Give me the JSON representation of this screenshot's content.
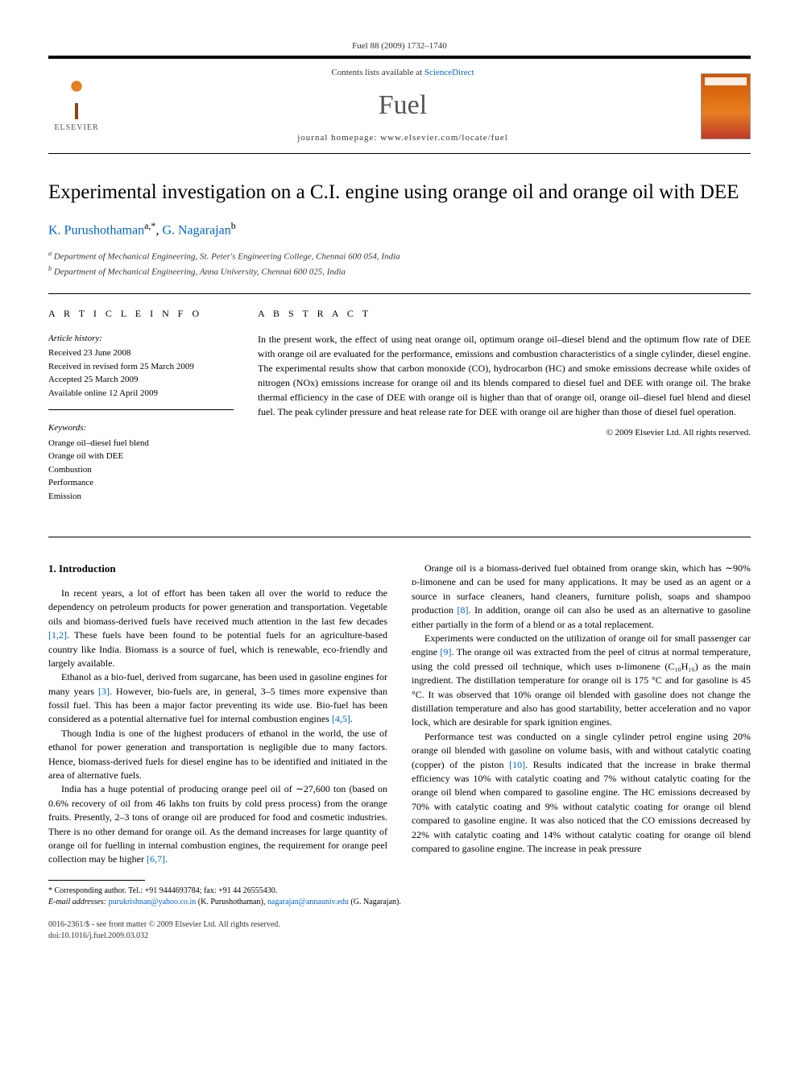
{
  "citation": "Fuel 88 (2009) 1732–1740",
  "header": {
    "contents_prefix": "Contents lists available at ",
    "contents_link": "ScienceDirect",
    "journal": "Fuel",
    "homepage_label": "journal homepage: ",
    "homepage_url": "www.elsevier.com/locate/fuel",
    "publisher": "ELSEVIER"
  },
  "title": "Experimental investigation on a C.I. engine using orange oil and orange oil with DEE",
  "authors": {
    "a1_name": "K. Purushothaman",
    "a1_sup": "a,*",
    "a2_name": "G. Nagarajan",
    "a2_sup": "b"
  },
  "affiliations": {
    "a": "Department of Mechanical Engineering, St. Peter's Engineering College, Chennai 600 054, India",
    "b": "Department of Mechanical Engineering, Anna University, Chennai 600 025, India"
  },
  "article_info": {
    "heading": "A R T I C L E   I N F O",
    "history_label": "Article history:",
    "received": "Received 23 June 2008",
    "revised": "Received in revised form 25 March 2009",
    "accepted": "Accepted 25 March 2009",
    "online": "Available online 12 April 2009",
    "keywords_label": "Keywords:",
    "kw1": "Orange oil–diesel fuel blend",
    "kw2": "Orange oil with DEE",
    "kw3": "Combustion",
    "kw4": "Performance",
    "kw5": "Emission"
  },
  "abstract": {
    "heading": "A B S T R A C T",
    "text": "In the present work, the effect of using neat orange oil, optimum orange oil–diesel blend and the optimum flow rate of DEE with orange oil are evaluated for the performance, emissions and combustion characteristics of a single cylinder, diesel engine. The experimental results show that carbon monoxide (CO), hydrocarbon (HC) and smoke emissions decrease while oxides of nitrogen (NOx) emissions increase for orange oil and its blends compared to diesel fuel and DEE with orange oil. The brake thermal efficiency in the case of DEE with orange oil is higher than that of orange oil, orange oil–diesel fuel blend and diesel fuel. The peak cylinder pressure and heat release rate for DEE with orange oil are higher than those of diesel fuel operation.",
    "copyright": "© 2009 Elsevier Ltd. All rights reserved."
  },
  "section1_heading": "1. Introduction",
  "paragraphs": {
    "p1a": "In recent years, a lot of effort has been taken all over the world to reduce the dependency on petroleum products for power generation and transportation. Vegetable oils and biomass-derived fuels have received much attention in the last few decades ",
    "p1_ref": "[1,2]",
    "p1b": ". These fuels have been found to be potential fuels for an agriculture-based country like India. Biomass is a source of fuel, which is renewable, eco-friendly and largely available.",
    "p2a": "Ethanol as a bio-fuel, derived from sugarcane, has been used in gasoline engines for many years ",
    "p2_ref1": "[3]",
    "p2b": ". However, bio-fuels are, in general, 3–5 times more expensive than fossil fuel. This has been a major factor preventing its wide use. Bio-fuel has been considered as a potential alternative fuel for internal combustion engines ",
    "p2_ref2": "[4,5]",
    "p2c": ".",
    "p3": "Though India is one of the highest producers of ethanol in the world, the use of ethanol for power generation and transportation is negligible due to many factors. Hence, biomass-derived fuels for diesel engine has to be identified and initiated in the area of alternative fuels.",
    "p4a": "India has a huge potential of producing orange peel oil of ∼27,600 ton (based on 0.6% recovery of oil from 46 lakhs ton fruits by cold press process) from the orange fruits. Presently, 2–3 tons of orange oil are produced for food and cosmetic industries. There is no other demand for orange oil. As the demand increases for large quantity of orange oil for fuelling in internal combustion engines, the requirement for orange peel collection may be higher ",
    "p4_ref": "[6,7]",
    "p4b": ".",
    "p5a": "Orange oil is a biomass-derived fuel obtained from orange skin, which has ∼90% ᴅ-limonene and can be used for many applications. It may be used as an agent or a source in surface cleaners, hand cleaners, furniture polish, soaps and shampoo production ",
    "p5_ref": "[8]",
    "p5b": ". In addition, orange oil can also be used as an alternative to gasoline either partially in the form of a blend or as a total replacement.",
    "p6a": "Experiments were conducted on the utilization of orange oil for small passenger car engine ",
    "p6_ref": "[9]",
    "p6b": ". The orange oil was extracted from the peel of citrus at normal temperature, using the cold pressed oil technique, which uses ᴅ-limonene (C₁₀H₁₆) as the main ingredient. The distillation temperature for orange oil is 175 °C and for gasoline is 45 °C. It was observed that 10% orange oil blended with gasoline does not change the distillation temperature and also has good startability, better acceleration and no vapor lock, which are desirable for spark ignition engines.",
    "p7a": "Performance test was conducted on a single cylinder petrol engine using 20% orange oil blended with gasoline on volume basis, with and without catalytic coating (copper) of the piston ",
    "p7_ref": "[10]",
    "p7b": ". Results indicated that the increase in brake thermal efficiency was 10% with catalytic coating and 7% without catalytic coating for the orange oil blend when compared to gasoline engine. The HC emissions decreased by 70% with catalytic coating and 9% without catalytic coating for orange oil blend compared to gasoline engine. It was also noticed that the CO emissions decreased by 22% with catalytic coating and 14% without catalytic coating for orange oil blend compared to gasoline engine. The increase in peak pressure"
  },
  "footnotes": {
    "corr_label": "* Corresponding author. Tel.: +91 9444693784; fax: +91 44 26555430.",
    "email_label": "E-mail addresses:",
    "email1": "purukrishnan@yahoo.co.in",
    "email1_who": " (K. Purushothaman), ",
    "email2": "nagarajan@annauniv.edu",
    "email2_who": " (G. Nagarajan)."
  },
  "footer": {
    "line1": "0016-2361/$ - see front matter © 2009 Elsevier Ltd. All rights reserved.",
    "line2": "doi:10.1016/j.fuel.2009.03.032"
  },
  "colors": {
    "link": "#0066cc",
    "text": "#000000",
    "accent": "#e67e22"
  }
}
